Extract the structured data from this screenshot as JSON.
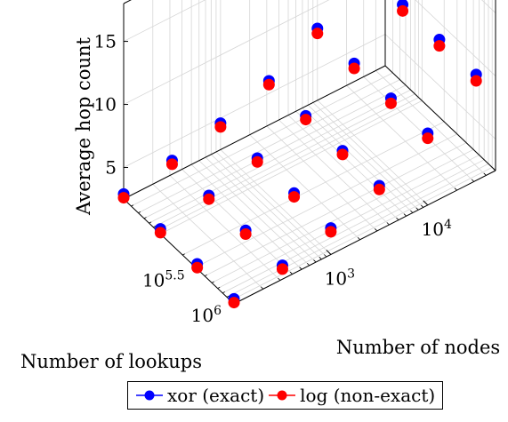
{
  "chart_data": {
    "type": "scatter3d",
    "title": "",
    "xlabel": "Number of nodes",
    "ylabel": "Number of lookups",
    "zlabel": "Average hop count",
    "z_ticks": [
      "5",
      "10",
      "15"
    ],
    "x_ticks": [
      {
        "base": "10",
        "exp": "3"
      },
      {
        "base": "10",
        "exp": "4"
      }
    ],
    "y_ticks": [
      {
        "base": "10",
        "exp": "5.5"
      },
      {
        "base": "10",
        "exp": "6"
      }
    ],
    "x_range": [
      2,
      4.7
    ],
    "y_range": [
      4.5,
      6
    ],
    "z_range": [
      2.5,
      18
    ],
    "grid": true,
    "legend_position": "bottom",
    "series": [
      {
        "name": "xor (exact)",
        "color": "#0000ff"
      },
      {
        "name": "log (non-exact)",
        "color": "#ff0000"
      }
    ],
    "x_log_nodes": [
      2.0,
      2.5,
      3.0,
      3.5,
      4.0,
      4.5
    ],
    "y_log_lookups": [
      4.5,
      5.0,
      5.5,
      6.0
    ],
    "points": [
      {
        "nodes_log": 2.0,
        "lookups_log": 4.5,
        "xor": 2.9,
        "log": 2.6
      },
      {
        "nodes_log": 2.5,
        "lookups_log": 4.5,
        "xor": 3.6,
        "log": 3.3
      },
      {
        "nodes_log": 3.0,
        "lookups_log": 4.5,
        "xor": 4.6,
        "log": 4.3
      },
      {
        "nodes_log": 3.5,
        "lookups_log": 4.5,
        "xor": 6.0,
        "log": 5.7
      },
      {
        "nodes_log": 4.0,
        "lookups_log": 4.5,
        "xor": 8.2,
        "log": 7.8
      },
      {
        "nodes_log": 4.5,
        "lookups_log": 4.5,
        "xor": 10.9,
        "log": 10.4
      },
      {
        "nodes_log": 2.0,
        "lookups_log": 5.0,
        "xor": 2.9,
        "log": 2.6
      },
      {
        "nodes_log": 2.5,
        "lookups_log": 5.0,
        "xor": 3.6,
        "log": 3.3
      },
      {
        "nodes_log": 3.0,
        "lookups_log": 5.0,
        "xor": 4.6,
        "log": 4.3
      },
      {
        "nodes_log": 3.5,
        "lookups_log": 5.0,
        "xor": 6.0,
        "log": 5.7
      },
      {
        "nodes_log": 4.0,
        "lookups_log": 5.0,
        "xor": 8.2,
        "log": 7.8
      },
      {
        "nodes_log": 4.5,
        "lookups_log": 5.0,
        "xor": 10.9,
        "log": 10.4
      },
      {
        "nodes_log": 2.0,
        "lookups_log": 5.5,
        "xor": 2.9,
        "log": 2.6
      },
      {
        "nodes_log": 2.5,
        "lookups_log": 5.5,
        "xor": 3.6,
        "log": 3.3
      },
      {
        "nodes_log": 3.0,
        "lookups_log": 5.5,
        "xor": 4.6,
        "log": 4.3
      },
      {
        "nodes_log": 3.5,
        "lookups_log": 5.5,
        "xor": 6.0,
        "log": 5.7
      },
      {
        "nodes_log": 4.0,
        "lookups_log": 5.5,
        "xor": 8.2,
        "log": 7.8
      },
      {
        "nodes_log": 4.5,
        "lookups_log": 5.5,
        "xor": 10.9,
        "log": 10.4
      },
      {
        "nodes_log": 2.0,
        "lookups_log": 6.0,
        "xor": 2.9,
        "log": 2.6
      },
      {
        "nodes_log": 2.5,
        "lookups_log": 6.0,
        "xor": 3.6,
        "log": 3.3
      },
      {
        "nodes_log": 3.0,
        "lookups_log": 6.0,
        "xor": 4.6,
        "log": 4.3
      },
      {
        "nodes_log": 3.5,
        "lookups_log": 6.0,
        "xor": 6.0,
        "log": 5.7
      },
      {
        "nodes_log": 4.0,
        "lookups_log": 6.0,
        "xor": 8.2,
        "log": 7.8
      },
      {
        "nodes_log": 4.5,
        "lookups_log": 6.0,
        "xor": 10.9,
        "log": 10.4
      }
    ]
  }
}
